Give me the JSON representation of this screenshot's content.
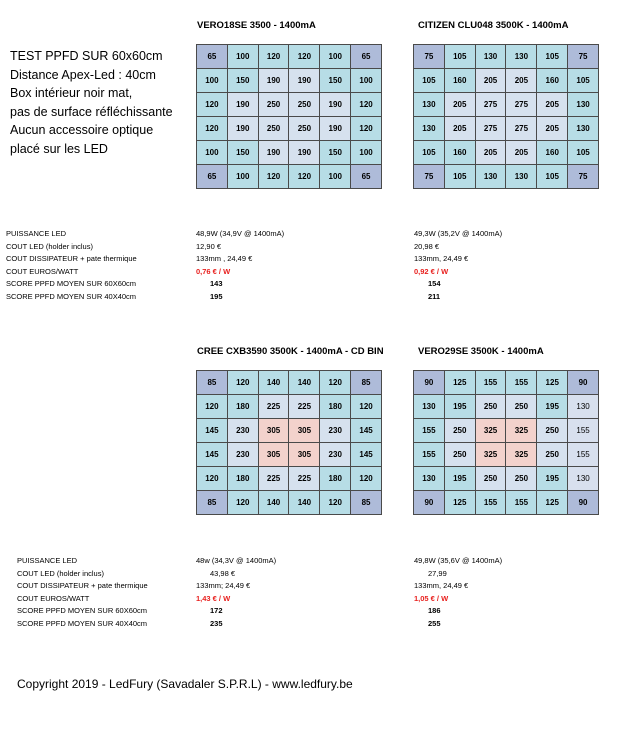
{
  "intro": {
    "lines": [
      "TEST PPFD SUR 60x60cm",
      "Distance Apex-Led : 40cm",
      "Box intérieur noir mat,",
      "pas de surface réfléchissante",
      "Aucun accessoire optique",
      "placé sur les LED"
    ]
  },
  "row_labels": [
    "PUISSANCE LED",
    "COUT LED (holder inclus)",
    "COUT DISSIPATEUR + pate thermique",
    "COUT  EUROS/WATT",
    "SCORE PPFD MOYEN SUR 60X60cm",
    "SCORE PPFD MOYEN SUR 40X40cm"
  ],
  "blocks": [
    {
      "title": "VERO18SE 3500 - 1400mA",
      "grid": [
        [
          "65",
          "100",
          "120",
          "120",
          "100",
          "65"
        ],
        [
          "100",
          "150",
          "190",
          "190",
          "150",
          "100"
        ],
        [
          "120",
          "190",
          "250",
          "250",
          "190",
          "120"
        ],
        [
          "120",
          "190",
          "250",
          "250",
          "190",
          "120"
        ],
        [
          "100",
          "150",
          "190",
          "190",
          "150",
          "100"
        ],
        [
          "65",
          "100",
          "120",
          "120",
          "100",
          "65"
        ]
      ],
      "stats": [
        "48,9W (34,9V @ 1400mA)",
        "12,90 €",
        "133mm ,   24,49 €",
        "0,76 € / W",
        "143",
        "195"
      ]
    },
    {
      "title": "CITIZEN CLU048 3500K - 1400mA",
      "grid": [
        [
          "75",
          "105",
          "130",
          "130",
          "105",
          "75"
        ],
        [
          "105",
          "160",
          "205",
          "205",
          "160",
          "105"
        ],
        [
          "130",
          "205",
          "275",
          "275",
          "205",
          "130"
        ],
        [
          "130",
          "205",
          "275",
          "275",
          "205",
          "130"
        ],
        [
          "105",
          "160",
          "205",
          "205",
          "160",
          "105"
        ],
        [
          "75",
          "105",
          "130",
          "130",
          "105",
          "75"
        ]
      ],
      "stats": [
        "49,3W (35,2V @ 1400mA)",
        "20,98 €",
        "133mm,  24,49 €",
        "0,92 € / W",
        "154",
        "211"
      ]
    },
    {
      "title": "CREE CXB3590 3500K - 1400mA - CD BIN",
      "grid": [
        [
          "85",
          "120",
          "140",
          "140",
          "120",
          "85"
        ],
        [
          "120",
          "180",
          "225",
          "225",
          "180",
          "120"
        ],
        [
          "145",
          "230",
          "305",
          "305",
          "230",
          "145"
        ],
        [
          "145",
          "230",
          "305",
          "305",
          "230",
          "145"
        ],
        [
          "120",
          "180",
          "225",
          "225",
          "180",
          "120"
        ],
        [
          "85",
          "120",
          "140",
          "140",
          "120",
          "85"
        ]
      ],
      "stats": [
        "48w (34,3V @ 1400mA)",
        "43,98 €",
        "133mm;  24,49 €",
        "1,43 € / W",
        "172",
        "235"
      ]
    },
    {
      "title": "VERO29SE 3500K - 1400mA",
      "grid": [
        [
          "90",
          "125",
          "155",
          "155",
          "125",
          "90"
        ],
        [
          "130",
          "195",
          "250",
          "250",
          "195",
          "130"
        ],
        [
          "155",
          "250",
          "325",
          "325",
          "250",
          "155"
        ],
        [
          "155",
          "250",
          "325",
          "325",
          "250",
          "155"
        ],
        [
          "130",
          "195",
          "250",
          "250",
          "195",
          "130"
        ],
        [
          "90",
          "125",
          "155",
          "155",
          "125",
          "90"
        ]
      ],
      "stats": [
        "49,8W (35,6V @ 1400mA)",
        "27,99",
        "133mm, 24,49 €",
        "1,05 € / W",
        "186",
        "255"
      ]
    }
  ],
  "footer": "Copyright 2019 - LedFury (Savadaler S.P.R.L) -  www.ledfury.be"
}
